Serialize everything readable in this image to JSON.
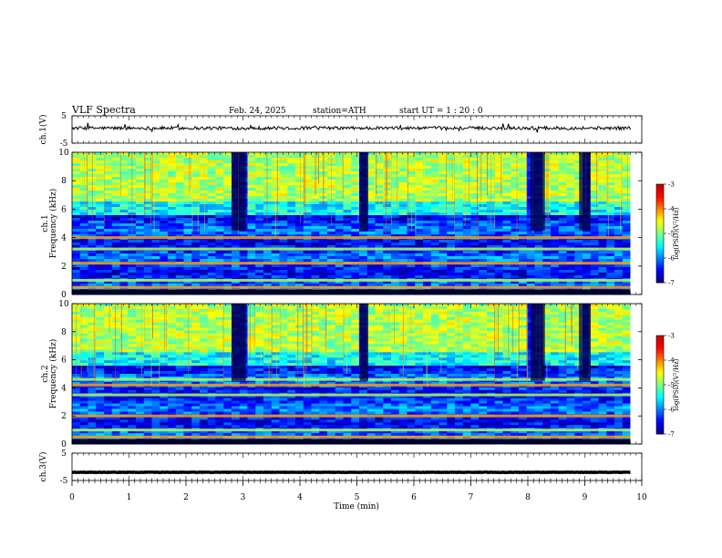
{
  "header": {
    "title": "VLF  Spectra",
    "date": "Feb. 24, 2025",
    "station": "station=ATH",
    "start": "start  UT  =   1 : 20 : 0"
  },
  "chart_data": {
    "type": "heatmap",
    "xlabel": "Time  (min)",
    "x_ticks": [
      "0",
      "1",
      "2",
      "3",
      "4",
      "5",
      "6",
      "7",
      "8",
      "9",
      "10"
    ],
    "xlim": [
      0,
      10
    ],
    "data_end_min": 9.8,
    "panels": [
      {
        "kind": "line",
        "ylabel": "ch.1(V)",
        "ylim": [
          -5,
          5
        ],
        "y_ticks": [
          "5",
          "-5"
        ],
        "baseline": 0.5,
        "noise": 0.6
      },
      {
        "kind": "spectrogram",
        "ylabel_lines": [
          "ch.1",
          "Frequency  (kHz)"
        ],
        "ylim": [
          0,
          10
        ],
        "y_ticks": [
          "0",
          "2",
          "4",
          "6",
          "8",
          "10"
        ],
        "colorbar_label": "log(PSD)(V²/Hz)",
        "colorbar_range": [
          -7,
          -3
        ],
        "colorbar_ticks": [
          "-3",
          "-4",
          "-5",
          "-6",
          "-7"
        ],
        "bands_khz": [
          0.5,
          1.0,
          2.2,
          3.2,
          4.0
        ]
      },
      {
        "kind": "spectrogram",
        "ylabel_lines": [
          "ch.2",
          "Frequency  (kHz)"
        ],
        "ylim": [
          0,
          10
        ],
        "y_ticks": [
          "0",
          "2",
          "4",
          "6",
          "8",
          "10"
        ],
        "colorbar_label": "log(PSD)(V²/Hz)",
        "colorbar_range": [
          -7,
          -3
        ],
        "colorbar_ticks": [
          "-3",
          "-4",
          "-5",
          "-6",
          "-7"
        ],
        "bands_khz": [
          0.5,
          1.0,
          2.0,
          3.5,
          4.2,
          4.6
        ]
      },
      {
        "kind": "line",
        "ylabel": "ch.3(V)",
        "ylim": [
          -5,
          5
        ],
        "y_ticks": [
          "5",
          "-5"
        ],
        "baseline": -2,
        "noise": 0.08
      }
    ],
    "quiet_intervals_min": [
      [
        2.8,
        3.05
      ],
      [
        5.05,
        5.2
      ],
      [
        8.05,
        8.3
      ],
      [
        8.9,
        9.1
      ]
    ]
  }
}
